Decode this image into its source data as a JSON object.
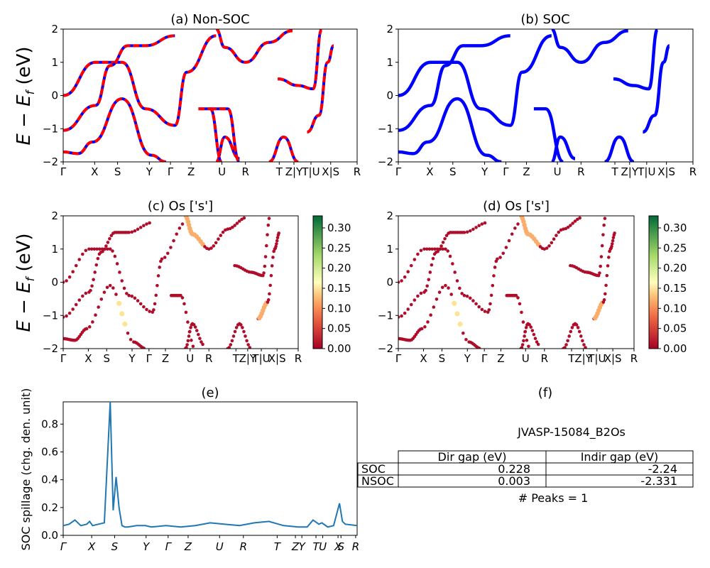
{
  "figure": {
    "panel_a": {
      "title": "(a) Non-SOC"
    },
    "panel_b": {
      "title": "(b) SOC"
    },
    "panel_c": {
      "title": "(c)  Os ['s']"
    },
    "panel_d": {
      "title": "(d) Os ['s']"
    },
    "panel_e": {
      "title": "(e)"
    },
    "panel_f": {
      "title": "(f)"
    },
    "ylabel_energy_base": "E − E",
    "ylabel_energy_sub": "f",
    "ylabel_energy_unit": " (eV)",
    "ylabel_spillage": "SOC spillage (chg. den. unit)",
    "energy_ticks": [
      "2",
      "1",
      "0",
      "−1",
      "−2"
    ],
    "kpath_labels": [
      "Γ",
      "X",
      "S",
      "Y",
      "Γ",
      "Z",
      "U",
      "R",
      "T",
      "Z|Y",
      "T|U",
      "X|S",
      "R"
    ],
    "spillage_xlabels": [
      "Γ",
      "X",
      "S",
      "Y",
      "Γ",
      "Z",
      "U",
      "R",
      "T",
      "Z",
      "Y",
      "T",
      "U",
      "X",
      "S",
      "R"
    ],
    "spillage_yticks": [
      "0.0",
      "0.2",
      "0.4",
      "0.6",
      "0.8"
    ],
    "colorbar_ticks": [
      "0.30",
      "0.25",
      "0.20",
      "0.15",
      "0.10",
      "0.05",
      "0.00"
    ]
  },
  "chart_data": [
    {
      "type": "line",
      "panel": "(a) Non-SOC",
      "ylabel": "E − E_f (eV)",
      "ylim": [
        -2,
        2
      ],
      "x_ticks": [
        "Γ",
        "X",
        "S",
        "Y",
        "Γ",
        "Z",
        "U",
        "R",
        "T",
        "Z|Y",
        "T|U",
        "X|S",
        "R"
      ],
      "series": [
        {
          "values": [
            [
              0,
              0.0
            ],
            [
              0.11,
              1.0
            ],
            [
              0.2,
              1.0
            ],
            [
              0.28,
              -0.4
            ],
            [
              0.38,
              -0.9
            ],
            [
              0.42,
              0.7
            ],
            [
              0.52,
              1.8
            ]
          ]
        },
        {
          "values": [
            [
              0,
              -1.05
            ],
            [
              0.11,
              -0.3
            ],
            [
              0.16,
              0.9
            ],
            [
              0.22,
              1.5
            ],
            [
              0.28,
              1.5
            ],
            [
              0.38,
              1.8
            ]
          ]
        },
        {
          "values": [
            [
              0,
              -1.7
            ],
            [
              0.05,
              -1.75
            ],
            [
              0.1,
              -1.4
            ],
            [
              0.2,
              -0.1
            ],
            [
              0.3,
              -1.8
            ],
            [
              0.35,
              -2.0
            ]
          ]
        },
        {
          "values": [
            [
              0.52,
              -2.0
            ],
            [
              0.55,
              -1.25
            ],
            [
              0.6,
              -1.9
            ]
          ]
        },
        {
          "values": [
            [
              0.52,
              2.0
            ],
            [
              0.55,
              1.45
            ],
            [
              0.62,
              1.0
            ],
            [
              0.7,
              1.6
            ],
            [
              0.78,
              1.95
            ]
          ]
        },
        {
          "values": [
            [
              0.5,
              -0.4
            ],
            [
              0.56,
              -0.4
            ],
            [
              0.6,
              -2.0
            ]
          ]
        },
        {
          "values": [
            [
              0.46,
              -0.4
            ],
            [
              0.5,
              -0.4
            ],
            [
              0.54,
              -2.0
            ]
          ]
        },
        {
          "values": [
            [
              0.73,
              0.5
            ],
            [
              0.8,
              0.3
            ],
            [
              0.85,
              0.2
            ],
            [
              0.88,
              2.0
            ]
          ]
        },
        {
          "values": [
            [
              0.7,
              -2.0
            ],
            [
              0.75,
              -1.25
            ],
            [
              0.8,
              -2.0
            ]
          ]
        },
        {
          "values": [
            [
              0.83,
              -1.1
            ],
            [
              0.87,
              -0.6
            ],
            [
              0.9,
              1.0
            ],
            [
              0.92,
              1.5
            ]
          ]
        }
      ]
    },
    {
      "type": "line",
      "panel": "(b) SOC",
      "ylabel": "E − E_f (eV)",
      "ylim": [
        -2,
        2
      ],
      "x_ticks": [
        "Γ",
        "X",
        "S",
        "Y",
        "Γ",
        "Z",
        "U",
        "R",
        "T",
        "Z|Y",
        "T|U",
        "X|S",
        "R"
      ],
      "series": [
        {
          "values": [
            [
              0,
              0.0
            ],
            [
              0.11,
              1.0
            ],
            [
              0.2,
              1.0
            ],
            [
              0.28,
              -0.4
            ],
            [
              0.38,
              -0.9
            ],
            [
              0.42,
              0.7
            ],
            [
              0.52,
              1.8
            ]
          ]
        },
        {
          "values": [
            [
              0,
              -1.05
            ],
            [
              0.11,
              -0.3
            ],
            [
              0.16,
              0.9
            ],
            [
              0.22,
              1.5
            ],
            [
              0.28,
              1.5
            ],
            [
              0.38,
              1.8
            ]
          ]
        },
        {
          "values": [
            [
              0,
              -1.7
            ],
            [
              0.05,
              -1.75
            ],
            [
              0.1,
              -1.4
            ],
            [
              0.2,
              -0.1
            ],
            [
              0.3,
              -1.8
            ],
            [
              0.35,
              -2.0
            ]
          ]
        },
        {
          "values": [
            [
              0.52,
              -2.0
            ],
            [
              0.55,
              -1.25
            ],
            [
              0.6,
              -1.9
            ]
          ]
        },
        {
          "values": [
            [
              0.52,
              2.0
            ],
            [
              0.55,
              1.45
            ],
            [
              0.62,
              1.0
            ],
            [
              0.7,
              1.6
            ],
            [
              0.78,
              1.95
            ]
          ]
        },
        {
          "values": [
            [
              0.46,
              -0.4
            ],
            [
              0.5,
              -0.4
            ],
            [
              0.56,
              -2.0
            ]
          ]
        },
        {
          "values": [
            [
              0.73,
              0.5
            ],
            [
              0.8,
              0.3
            ],
            [
              0.85,
              0.2
            ],
            [
              0.88,
              2.0
            ]
          ]
        },
        {
          "values": [
            [
              0.7,
              -2.0
            ],
            [
              0.75,
              -1.25
            ],
            [
              0.8,
              -2.0
            ]
          ]
        },
        {
          "values": [
            [
              0.83,
              -1.1
            ],
            [
              0.87,
              -0.6
            ],
            [
              0.9,
              1.0
            ],
            [
              0.92,
              1.5
            ]
          ]
        }
      ]
    },
    {
      "type": "scatter",
      "panel": "(c)  Os ['s']",
      "ylabel": "E − E_f (eV)",
      "ylim": [
        -2,
        2
      ],
      "colorbar_range": [
        0.0,
        0.33
      ],
      "x_ticks": [
        "Γ",
        "X",
        "S",
        "Y",
        "Γ",
        "Z",
        "U",
        "R",
        "T",
        "Z|Y",
        "T|U",
        "X|S",
        "R"
      ],
      "point_weights": {
        "highlighted_band_around_S_Y": 0.15,
        "highlighted_band_around_Z_U": 0.12,
        "default": 0.01
      }
    },
    {
      "type": "scatter",
      "panel": "(d) Os ['s']",
      "ylabel": "E − E_f (eV)",
      "ylim": [
        -2,
        2
      ],
      "colorbar_range": [
        0.0,
        0.33
      ],
      "x_ticks": [
        "Γ",
        "X",
        "S",
        "Y",
        "Γ",
        "Z",
        "U",
        "R",
        "T",
        "Z|Y",
        "T|U",
        "X|S",
        "R"
      ],
      "point_weights": {
        "highlighted_band_around_S_Y": 0.15,
        "highlighted_band_around_Z_U": 0.12,
        "default": 0.01
      }
    },
    {
      "type": "line",
      "panel": "(e)",
      "ylabel": "SOC spillage (chg. den. unit)",
      "ylim": [
        0,
        0.96
      ],
      "x_ticks": [
        "Γ",
        "X",
        "S",
        "Y",
        "Γ",
        "Z",
        "U",
        "R",
        "T",
        "Z",
        "Y",
        "T",
        "U",
        "X",
        "S",
        "R"
      ],
      "x": [
        0,
        0.02,
        0.04,
        0.06,
        0.08,
        0.09,
        0.1,
        0.12,
        0.14,
        0.16,
        0.17,
        0.18,
        0.19,
        0.2,
        0.21,
        0.22,
        0.25,
        0.28,
        0.3,
        0.35,
        0.4,
        0.45,
        0.5,
        0.55,
        0.6,
        0.65,
        0.7,
        0.75,
        0.8,
        0.83,
        0.85,
        0.87,
        0.88,
        0.9,
        0.92,
        0.93,
        0.94,
        0.95,
        0.96,
        1.0
      ],
      "values": [
        0.07,
        0.08,
        0.11,
        0.07,
        0.08,
        0.1,
        0.07,
        0.08,
        0.09,
        0.96,
        0.18,
        0.42,
        0.2,
        0.07,
        0.06,
        0.06,
        0.07,
        0.07,
        0.06,
        0.07,
        0.06,
        0.07,
        0.09,
        0.08,
        0.07,
        0.09,
        0.1,
        0.07,
        0.06,
        0.06,
        0.11,
        0.08,
        0.09,
        0.06,
        0.07,
        0.15,
        0.23,
        0.1,
        0.08,
        0.07
      ]
    },
    {
      "type": "table",
      "panel": "(f)",
      "title": "JVASP-15084_B2Os",
      "columns": [
        "",
        "Dir gap (eV)",
        "Indir gap (eV)"
      ],
      "rows": [
        [
          "SOC",
          "0.228",
          "-2.24"
        ],
        [
          "NSOC",
          "0.003",
          "-2.331"
        ]
      ],
      "note": "# Peaks = 1"
    }
  ]
}
